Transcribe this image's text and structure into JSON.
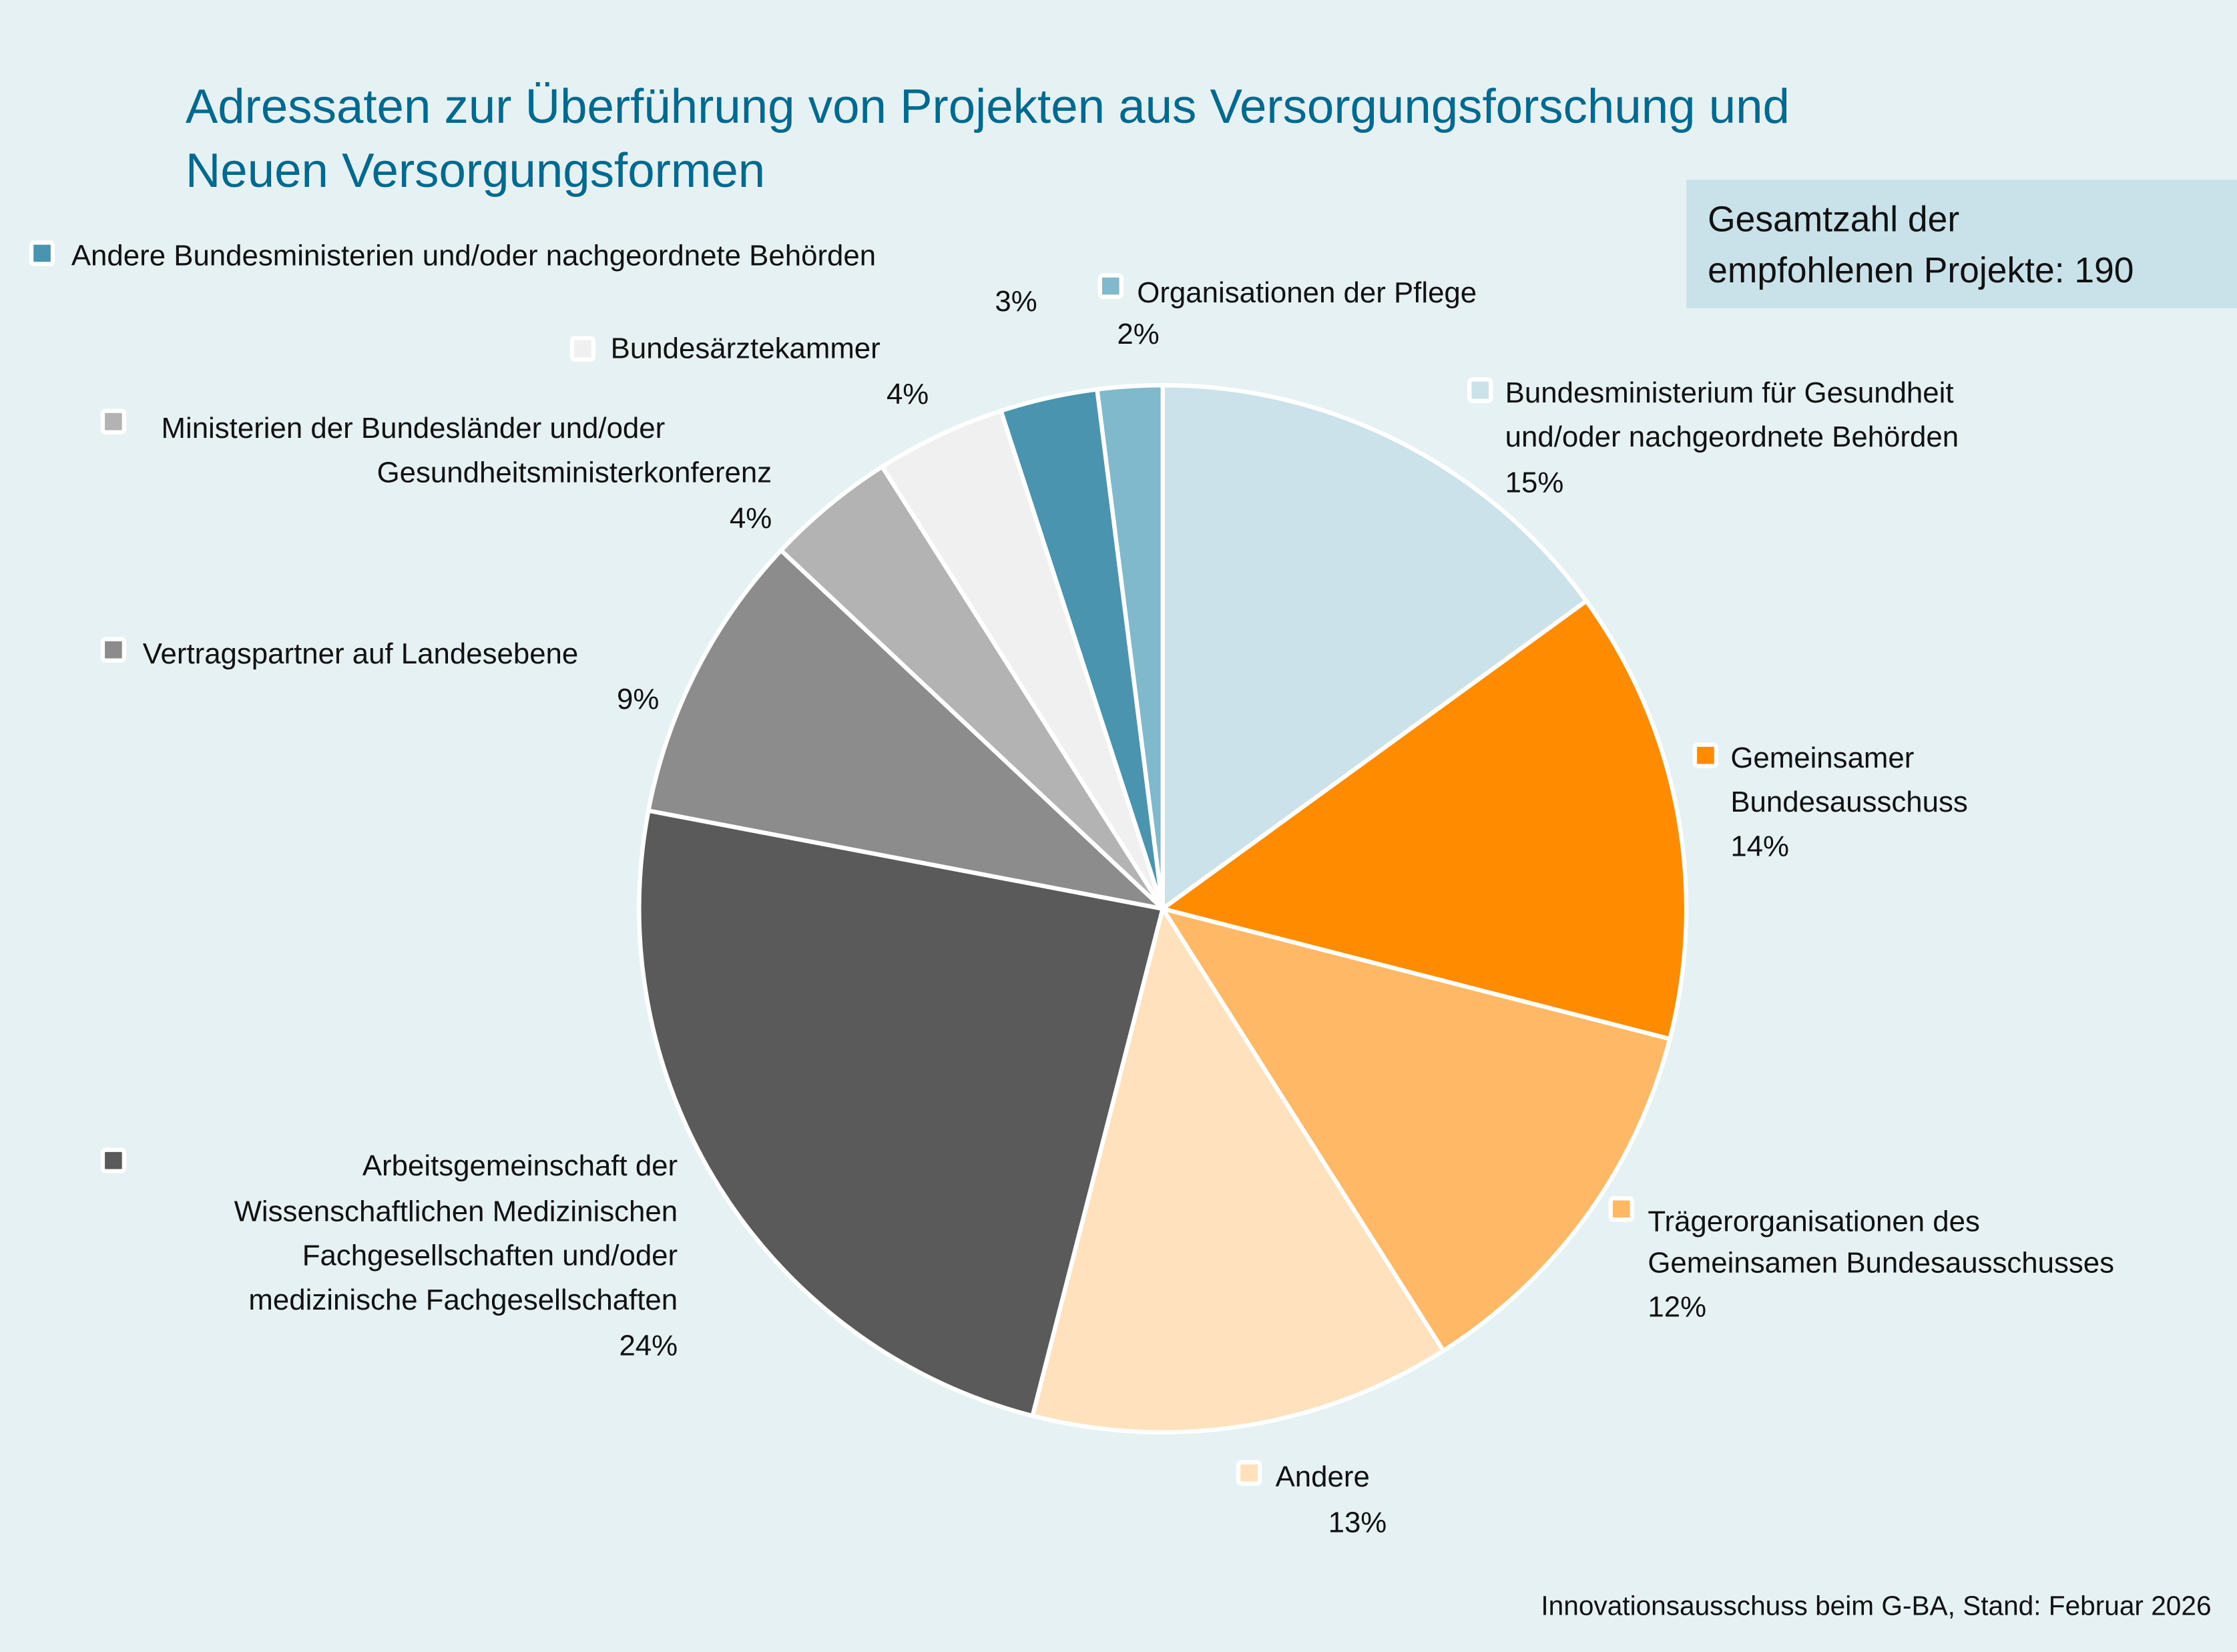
{
  "chart_data": {
    "type": "pie",
    "title": [
      "Adressaten zur Überführung von Projekten aus Versorgungsforschung und",
      "Neuen Versorgungsformen"
    ],
    "total_box": [
      "Gesamtzahl der",
      "empfohlenen Projekte: 190"
    ],
    "source": "Innovationsausschuss beim G-BA, Stand: Februar 2026",
    "start": "top, clockwise",
    "slices": [
      {
        "label": [
          "Bundesministerium für Gesundheit",
          "und/oder nachgeordnete Behörden"
        ],
        "value": 15,
        "pct": "15%",
        "color": "#cbe2ea"
      },
      {
        "label": [
          "Gemeinsamer",
          "Bundesausschuss"
        ],
        "value": 14,
        "pct": "14%",
        "color": "#ff8c00"
      },
      {
        "label": [
          "Trägerorganisationen des",
          "Gemeinsamen Bundesausschusses"
        ],
        "value": 12,
        "pct": "12%",
        "color": "#ffb966"
      },
      {
        "label": [
          "Andere"
        ],
        "value": 13,
        "pct": "13%",
        "color": "#ffe1bd"
      },
      {
        "label": [
          "Arbeitsgemeinschaft der",
          "Wissenschaftlichen Medizinischen",
          "Fachgesellschaften und/oder",
          "medizinische Fachgesellschaften"
        ],
        "value": 24,
        "pct": "24%",
        "color": "#5a5a5a"
      },
      {
        "label": [
          "Vertragspartner auf Landesebene"
        ],
        "value": 9,
        "pct": "9%",
        "color": "#8c8c8c"
      },
      {
        "label": [
          "Ministerien der Bundesländer und/oder",
          "Gesundheitsministerkonferenz"
        ],
        "value": 4,
        "pct": "4%",
        "color": "#b3b3b3"
      },
      {
        "label": [
          "Bundesärztekammer"
        ],
        "value": 4,
        "pct": "4%",
        "color": "#f0f0f0"
      },
      {
        "label": [
          "Andere Bundesministerien und/oder nachgeordnete Behörden"
        ],
        "value": 3,
        "pct": "3%",
        "color": "#4a94b0"
      },
      {
        "label": [
          "Organisationen der Pflege"
        ],
        "value": 2,
        "pct": "2%",
        "color": "#80b8cc"
      }
    ]
  }
}
